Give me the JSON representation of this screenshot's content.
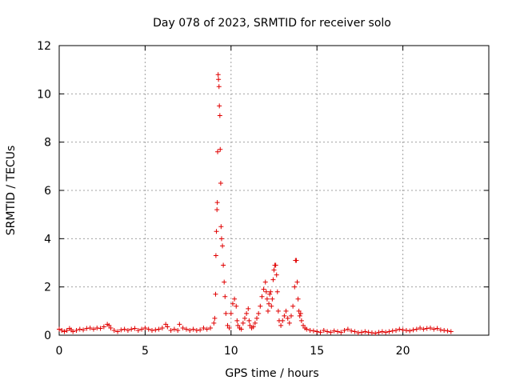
{
  "chart_data": {
    "type": "scatter",
    "title": "Day 078 of 2023, SRMTID for receiver solo",
    "xlabel": "GPS time / hours",
    "ylabel": "SRMTID / TECUs",
    "xlim": [
      0,
      25
    ],
    "ylim": [
      0,
      12
    ],
    "xticks": [
      0,
      5,
      10,
      15,
      20
    ],
    "yticks": [
      0,
      2,
      4,
      6,
      8,
      10,
      12
    ],
    "grid": true,
    "marker": "+",
    "color": "#e00000",
    "series": [
      {
        "x": [
          0.0,
          0.15,
          0.3,
          0.45,
          0.6,
          0.7,
          0.8,
          1.0,
          1.2,
          1.4,
          1.6,
          1.8,
          2.0,
          2.2,
          2.4,
          2.6,
          2.8,
          2.9,
          3.0,
          3.2,
          3.4,
          3.6,
          3.8,
          4.0,
          4.2,
          4.4,
          4.6,
          4.8,
          5.0,
          5.2,
          5.4,
          5.6,
          5.8,
          6.0,
          6.2,
          6.3,
          6.5,
          6.7,
          6.9,
          7.0,
          7.2,
          7.4,
          7.6,
          7.8,
          8.0,
          8.2,
          8.4,
          8.6,
          8.8,
          9.0,
          9.05,
          9.1,
          9.12,
          9.15,
          9.18,
          9.2,
          9.22,
          9.25,
          9.27,
          9.3,
          9.32,
          9.35,
          9.37,
          9.4,
          9.42,
          9.45,
          9.5,
          9.55,
          9.6,
          9.65,
          9.7,
          9.8,
          9.9,
          10.0,
          10.1,
          10.2,
          10.3,
          10.35,
          10.4,
          10.5,
          10.6,
          10.7,
          10.8,
          10.9,
          11.0,
          11.05,
          11.1,
          11.2,
          11.3,
          11.4,
          11.5,
          11.6,
          11.7,
          11.8,
          11.9,
          12.0,
          12.05,
          12.1,
          12.15,
          12.2,
          12.25,
          12.3,
          12.35,
          12.4,
          12.45,
          12.5,
          12.55,
          12.6,
          12.65,
          12.7,
          12.75,
          12.8,
          12.9,
          13.0,
          13.1,
          13.2,
          13.3,
          13.4,
          13.5,
          13.6,
          13.7,
          13.75,
          13.8,
          13.85,
          13.9,
          13.95,
          14.0,
          14.05,
          14.1,
          14.2,
          14.3,
          14.4,
          14.6,
          14.8,
          15.0,
          15.2,
          15.4,
          15.6,
          15.8,
          16.0,
          16.2,
          16.4,
          16.6,
          16.8,
          17.0,
          17.2,
          17.4,
          17.6,
          17.8,
          18.0,
          18.2,
          18.4,
          18.6,
          18.8,
          19.0,
          19.2,
          19.4,
          19.6,
          19.8,
          20.0,
          20.2,
          20.4,
          20.6,
          20.8,
          21.0,
          21.2,
          21.4,
          21.6,
          21.8,
          22.0,
          22.2,
          22.4,
          22.6,
          22.8
        ],
        "y": [
          0.25,
          0.2,
          0.15,
          0.2,
          0.28,
          0.22,
          0.15,
          0.2,
          0.25,
          0.22,
          0.28,
          0.3,
          0.25,
          0.3,
          0.28,
          0.35,
          0.45,
          0.4,
          0.3,
          0.2,
          0.15,
          0.22,
          0.25,
          0.2,
          0.25,
          0.28,
          0.2,
          0.25,
          0.3,
          0.25,
          0.2,
          0.22,
          0.25,
          0.3,
          0.45,
          0.35,
          0.2,
          0.25,
          0.2,
          0.45,
          0.3,
          0.25,
          0.2,
          0.25,
          0.2,
          0.22,
          0.3,
          0.25,
          0.3,
          0.5,
          0.7,
          1.7,
          3.3,
          4.3,
          5.2,
          5.5,
          7.6,
          10.8,
          10.6,
          10.3,
          9.5,
          9.1,
          7.7,
          6.3,
          4.5,
          4.0,
          3.7,
          2.9,
          2.2,
          1.6,
          0.9,
          0.4,
          0.3,
          0.9,
          1.3,
          1.5,
          1.2,
          0.6,
          0.4,
          0.3,
          0.25,
          0.5,
          0.7,
          0.9,
          1.1,
          0.6,
          0.4,
          0.3,
          0.35,
          0.5,
          0.7,
          0.9,
          1.2,
          1.6,
          1.9,
          2.2,
          1.8,
          1.5,
          1.0,
          1.3,
          1.7,
          1.8,
          1.2,
          1.5,
          2.3,
          2.7,
          2.9,
          2.9,
          2.5,
          1.8,
          1.0,
          0.6,
          0.4,
          0.6,
          0.8,
          1.0,
          0.7,
          0.5,
          0.8,
          1.2,
          2.0,
          3.1,
          3.1,
          2.2,
          1.5,
          1.0,
          0.8,
          0.9,
          0.6,
          0.4,
          0.3,
          0.25,
          0.2,
          0.18,
          0.15,
          0.12,
          0.2,
          0.15,
          0.12,
          0.18,
          0.15,
          0.12,
          0.2,
          0.25,
          0.18,
          0.15,
          0.1,
          0.12,
          0.15,
          0.12,
          0.1,
          0.08,
          0.12,
          0.15,
          0.12,
          0.15,
          0.18,
          0.2,
          0.25,
          0.22,
          0.2,
          0.18,
          0.22,
          0.25,
          0.3,
          0.25,
          0.28,
          0.3,
          0.25,
          0.28,
          0.22,
          0.2,
          0.18,
          0.15
        ]
      }
    ]
  }
}
